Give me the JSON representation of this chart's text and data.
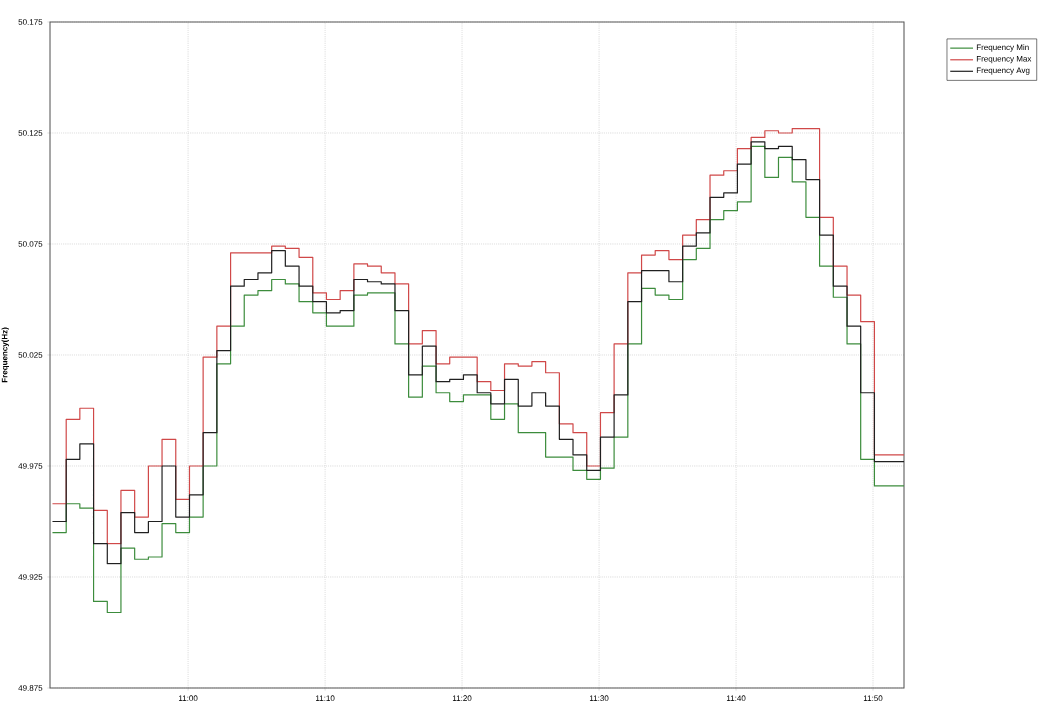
{
  "chart_data": {
    "type": "step",
    "ylabel": "Frequency(Hz)",
    "x": [
      10.835,
      10.8517,
      10.8683,
      10.885,
      10.9017,
      10.9183,
      10.935,
      10.9517,
      10.9683,
      10.985,
      11.0017,
      11.0183,
      11.035,
      11.0517,
      11.0683,
      11.085,
      11.1017,
      11.1183,
      11.135,
      11.1517,
      11.1683,
      11.185,
      11.2017,
      11.2183,
      11.235,
      11.2517,
      11.2683,
      11.285,
      11.3017,
      11.3183,
      11.335,
      11.3517,
      11.3683,
      11.385,
      11.4017,
      11.4183,
      11.435,
      11.4517,
      11.4683,
      11.485,
      11.5017,
      11.5183,
      11.535,
      11.5517,
      11.5683,
      11.585,
      11.6017,
      11.6183,
      11.635,
      11.6517,
      11.6683,
      11.685,
      11.7017,
      11.7183,
      11.735,
      11.7517,
      11.7683,
      11.785,
      11.8017,
      11.8183,
      11.835,
      11.871
    ],
    "series": [
      {
        "name": "Frequency Min",
        "color": "#3c8c3c",
        "values": [
          49.945,
          49.958,
          49.956,
          49.914,
          49.909,
          49.938,
          49.933,
          49.934,
          49.949,
          49.945,
          49.952,
          49.975,
          50.021,
          50.038,
          50.052,
          50.054,
          50.059,
          50.057,
          50.049,
          50.044,
          50.038,
          50.038,
          50.052,
          50.053,
          50.053,
          50.03,
          50.006,
          50.02,
          50.008,
          50.004,
          50.007,
          50.007,
          49.996,
          50.003,
          49.99,
          49.99,
          49.979,
          49.979,
          49.973,
          49.969,
          49.974,
          49.988,
          50.03,
          50.055,
          50.052,
          50.05,
          50.068,
          50.073,
          50.086,
          50.09,
          50.094,
          50.119,
          50.105,
          50.114,
          50.103,
          50.087,
          50.065,
          50.051,
          50.03,
          49.978,
          49.966,
          49.966
        ]
      },
      {
        "name": "Frequency Max",
        "color": "#d04848",
        "values": [
          49.958,
          49.996,
          50.001,
          49.955,
          49.94,
          49.964,
          49.952,
          49.975,
          49.987,
          49.96,
          49.975,
          50.024,
          50.038,
          50.071,
          50.071,
          50.071,
          50.074,
          50.073,
          50.069,
          50.053,
          50.05,
          50.054,
          50.066,
          50.065,
          50.062,
          50.057,
          50.03,
          50.036,
          50.021,
          50.024,
          50.024,
          50.013,
          50.009,
          50.021,
          50.02,
          50.022,
          50.017,
          49.994,
          49.99,
          49.975,
          49.999,
          50.03,
          50.062,
          50.07,
          50.072,
          50.068,
          50.079,
          50.086,
          50.106,
          50.108,
          50.118,
          50.123,
          50.126,
          50.125,
          50.127,
          50.127,
          50.087,
          50.065,
          50.052,
          50.04,
          49.98,
          49.98
        ]
      },
      {
        "name": "Frequency Avg",
        "color": "#202020",
        "values": [
          49.95,
          49.978,
          49.985,
          49.94,
          49.931,
          49.954,
          49.945,
          49.95,
          49.975,
          49.952,
          49.962,
          49.99,
          50.027,
          50.056,
          50.059,
          50.062,
          50.072,
          50.065,
          50.056,
          50.049,
          50.044,
          50.045,
          50.059,
          50.058,
          50.057,
          50.045,
          50.016,
          50.029,
          50.013,
          50.014,
          50.016,
          50.008,
          50.003,
          50.014,
          50.002,
          50.008,
          50.002,
          49.987,
          49.98,
          49.973,
          49.988,
          50.007,
          50.049,
          50.063,
          50.063,
          50.058,
          50.074,
          50.08,
          50.096,
          50.098,
          50.111,
          50.121,
          50.118,
          50.119,
          50.113,
          50.104,
          50.079,
          50.056,
          50.038,
          50.008,
          49.977,
          49.977
        ]
      }
    ],
    "xlim": [
      10.832,
      11.871
    ],
    "xticks": [
      {
        "value": 11.0,
        "label": "11:00"
      },
      {
        "value": 11.1667,
        "label": "11:10"
      },
      {
        "value": 11.3333,
        "label": "11:20"
      },
      {
        "value": 11.5,
        "label": "11:30"
      },
      {
        "value": 11.6667,
        "label": "11:40"
      },
      {
        "value": 11.8333,
        "label": "11:50"
      }
    ],
    "ylim": [
      49.875,
      50.175
    ],
    "yticks": [
      49.875,
      49.925,
      49.975,
      50.025,
      50.075,
      50.125,
      50.175
    ],
    "grid": true,
    "legend": "top right",
    "marker": "none",
    "line_style": "solid"
  }
}
